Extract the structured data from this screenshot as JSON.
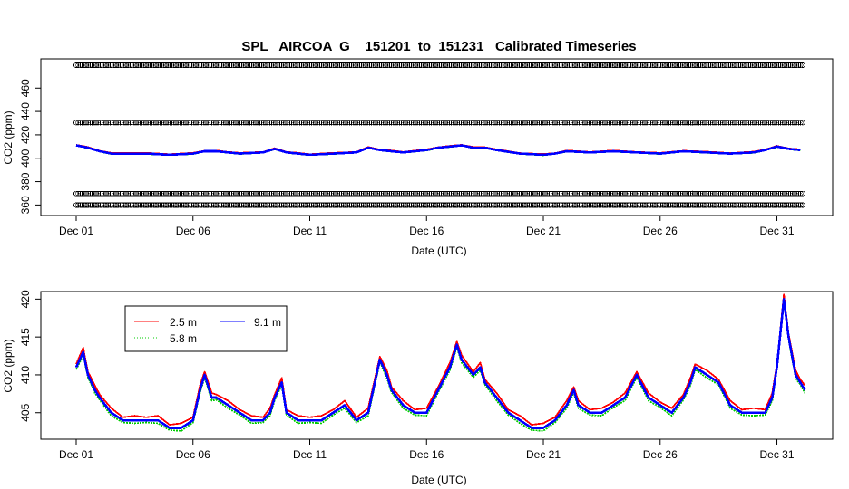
{
  "chart_data": [
    {
      "type": "line",
      "title": "SPL   AIRCOA  G    151201  to  151231   Calibrated Timeseries",
      "xlabel": "Date (UTC)",
      "ylabel": "CO2 (ppm)",
      "x_ticks": [
        "Dec 01",
        "Dec 06",
        "Dec 11",
        "Dec 16",
        "Dec 21",
        "Dec 26",
        "Dec 31"
      ],
      "y_ticks": [
        360,
        380,
        400,
        420,
        440,
        460
      ],
      "xlim_days": [
        0,
        31.3
      ],
      "ylim": [
        351,
        485
      ],
      "reference_levels": [
        {
          "label": "",
          "value": 479.6
        },
        {
          "label": "",
          "value": 430.5
        },
        {
          "label": "",
          "value": 369.8
        },
        {
          "label": "",
          "value": 359.9
        }
      ],
      "series": [
        {
          "name": "2.5 m",
          "color": "#ff0000"
        },
        {
          "name": "5.8 m",
          "color": "#00cc00"
        },
        {
          "name": "9.1 m",
          "color": "#0000ff"
        }
      ],
      "x": [
        0,
        0.5,
        1,
        1.5,
        2,
        3,
        4,
        5,
        5.5,
        6,
        6.5,
        7,
        8,
        8.5,
        9,
        9.5,
        10,
        11,
        12,
        12.5,
        13,
        13.5,
        14,
        15,
        15.5,
        16,
        16.5,
        17,
        17.5,
        18,
        19,
        20,
        20.5,
        21,
        22,
        23,
        24,
        25,
        26,
        27,
        28,
        29,
        29.5,
        30,
        30.5,
        31
      ],
      "values": [
        411,
        409,
        406,
        404,
        404,
        404,
        403,
        404,
        406,
        406,
        405,
        404,
        405,
        408,
        405,
        404,
        403,
        404,
        405,
        409,
        407,
        406,
        405,
        407,
        409,
        410,
        411,
        409,
        409,
        407,
        404,
        403,
        404,
        406,
        405,
        406,
        405,
        404,
        406,
        405,
        404,
        405,
        407,
        410,
        408,
        407
      ]
    },
    {
      "type": "line",
      "title": "",
      "xlabel": "Date (UTC)",
      "ylabel": "CO2 (ppm)",
      "x_ticks": [
        "Dec 01",
        "Dec 06",
        "Dec 11",
        "Dec 16",
        "Dec 21",
        "Dec 26",
        "Dec 31"
      ],
      "y_ticks": [
        405,
        410,
        415,
        420
      ],
      "xlim_days": [
        0,
        31.3
      ],
      "ylim": [
        401.5,
        421
      ],
      "legend": {
        "position": "top-left",
        "entries": [
          "2.5 m",
          "5.8 m",
          "9.1 m"
        ]
      },
      "series": [
        {
          "name": "2.5 m",
          "color": "#ff0000"
        },
        {
          "name": "5.8 m",
          "color": "#00cc00"
        },
        {
          "name": "9.1 m",
          "color": "#0000ff"
        }
      ],
      "x": [
        0,
        0.3,
        0.5,
        0.8,
        1,
        1.5,
        2,
        2.5,
        3,
        3.5,
        4,
        4.5,
        5,
        5.3,
        5.5,
        5.8,
        6,
        6.5,
        7,
        7.5,
        8,
        8.3,
        8.5,
        8.8,
        9,
        9.5,
        10,
        10.5,
        11,
        11.5,
        12,
        12.5,
        13,
        13.3,
        13.5,
        14,
        14.5,
        15,
        15.5,
        16,
        16.3,
        16.5,
        17,
        17.3,
        17.5,
        18,
        18.5,
        19,
        19.5,
        20,
        20.5,
        21,
        21.3,
        21.5,
        22,
        22.5,
        23,
        23.5,
        24,
        24.5,
        25,
        25.5,
        26,
        26.3,
        26.5,
        27,
        27.5,
        28,
        28.5,
        29,
        29.5,
        29.8,
        30,
        30.3,
        30.5,
        30.8,
        31,
        31.2
      ],
      "values": [
        411,
        413,
        410,
        408,
        407,
        405,
        404,
        404,
        404,
        404,
        403,
        403,
        404,
        408,
        410,
        407,
        407,
        406,
        405,
        404,
        404,
        405,
        407,
        409,
        405,
        404,
        404,
        404,
        405,
        406,
        404,
        405,
        412,
        410,
        408,
        406,
        405,
        405,
        408,
        411,
        414,
        412,
        410,
        411,
        409,
        407,
        405,
        404,
        403,
        403,
        404,
        406,
        408,
        406,
        405,
        405,
        406,
        407,
        410,
        407,
        406,
        405,
        407,
        409,
        411,
        410,
        409,
        406,
        405,
        405,
        405,
        407,
        411,
        420,
        415,
        410,
        409,
        408
      ]
    }
  ]
}
